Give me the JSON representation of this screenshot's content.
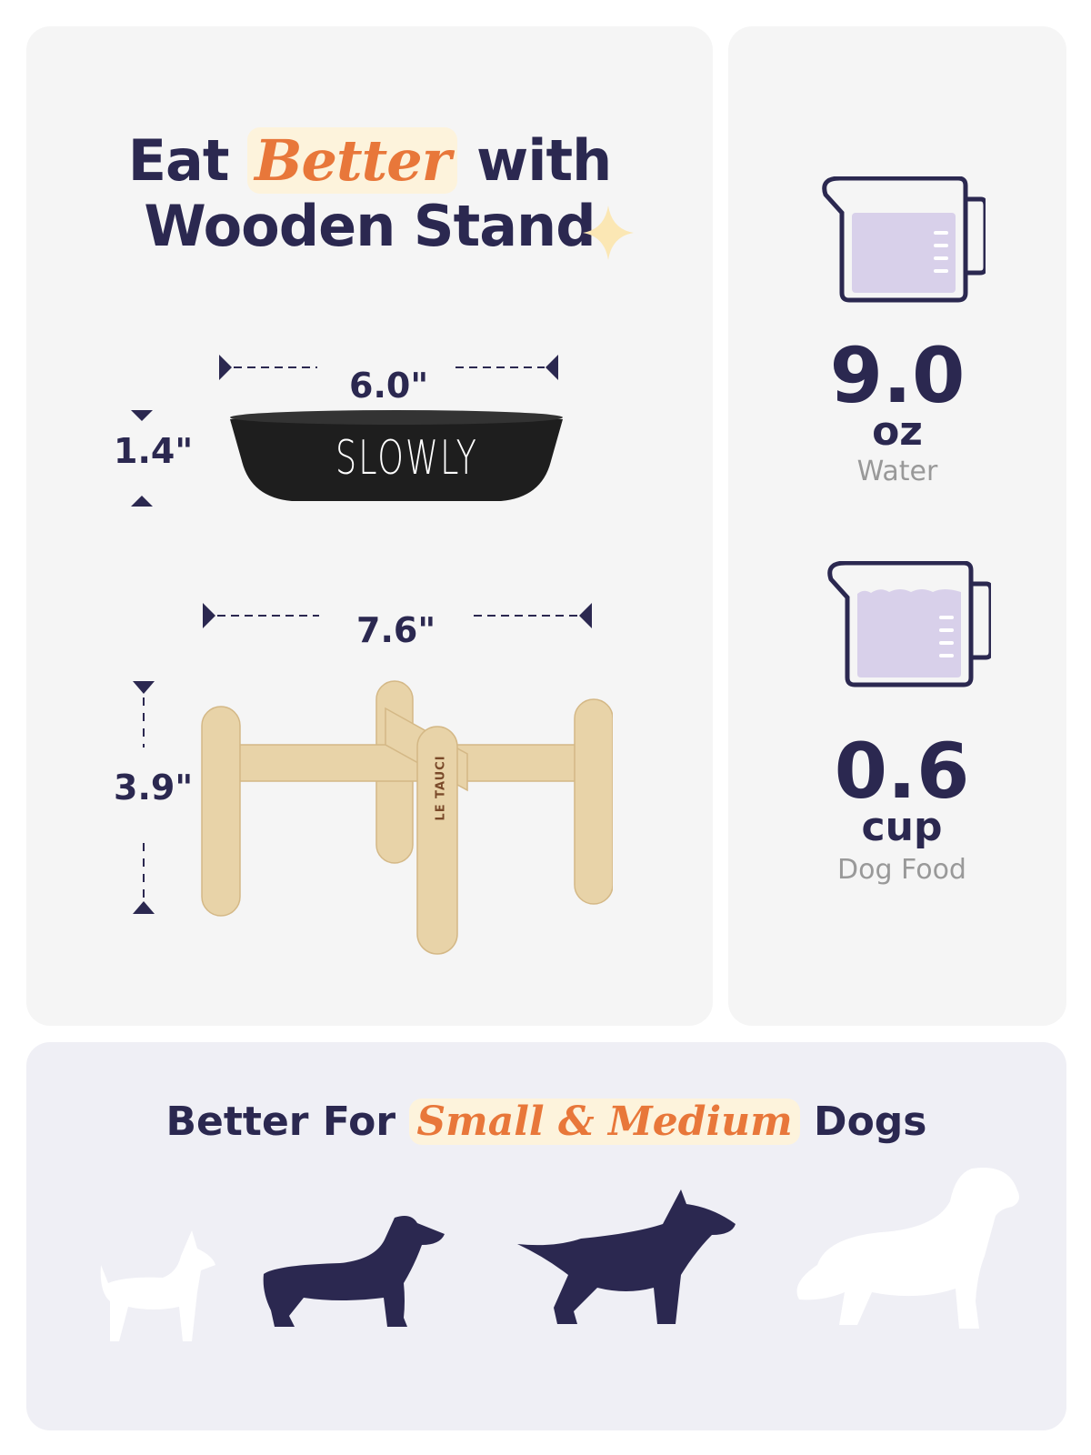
{
  "headline": {
    "line1_pre": "Eat",
    "line1_highlight": "Better",
    "line1_post": "with",
    "line2": "Wooden Stand"
  },
  "bowl": {
    "width": "6.0\"",
    "height": "1.4\"",
    "engraving": "SLOWLY"
  },
  "stand": {
    "width": "7.6\"",
    "height": "3.9\"",
    "brand": "LE TAUCI"
  },
  "capacity": [
    {
      "value": "9.0",
      "unit": "oz",
      "label": "Water"
    },
    {
      "value": "0.6",
      "unit": "cup",
      "label": "Dog Food"
    }
  ],
  "dogs": {
    "pre": "Better For",
    "highlight": "Small & Medium",
    "post": "Dogs"
  },
  "colors": {
    "navy": "#2b2850",
    "orange": "#e8773a",
    "highlight_bg": "#fdf3dc",
    "liquid": "#d8d0ea",
    "wood": "#e8d3a8"
  }
}
